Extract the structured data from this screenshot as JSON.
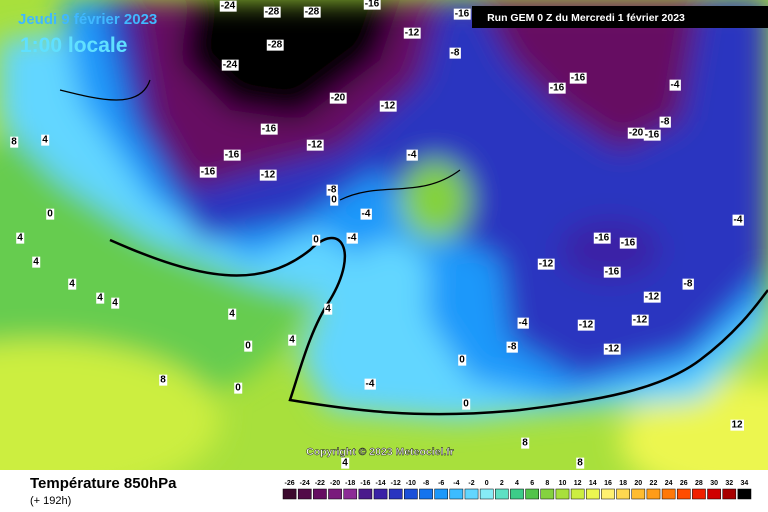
{
  "header": {
    "date": "Jeudi 9 février 2023",
    "time": "1:00 locale",
    "run": "Run GEM 0 Z du Mercredi 1 février 2023",
    "copyright": "Copyright © 2023 Meteociel.fr"
  },
  "footer": {
    "title": "Température 850hPa",
    "lead": "(+ 192h)"
  },
  "scale": {
    "ticks": [
      -26,
      -24,
      -22,
      -20,
      -18,
      -16,
      -14,
      -12,
      -10,
      -8,
      -6,
      -4,
      -2,
      0,
      2,
      4,
      6,
      8,
      10,
      12,
      14,
      16,
      18,
      20,
      22,
      24,
      26,
      28,
      30,
      32,
      34
    ],
    "colors": [
      "#3c0a2e",
      "#520a48",
      "#660e62",
      "#7a1a7c",
      "#8c2c96",
      "#4a1a8c",
      "#3a22a6",
      "#2a34c0",
      "#1c50d8",
      "#1474ee",
      "#1c98fa",
      "#3cbcff",
      "#62d6ff",
      "#86ecf6",
      "#5ee0c4",
      "#3ccc88",
      "#52c44a",
      "#84d23e",
      "#a8e03c",
      "#ccee40",
      "#ecf650",
      "#fff070",
      "#ffd850",
      "#ffbc30",
      "#ff9c18",
      "#ff7808",
      "#ff4c00",
      "#f02000",
      "#d00000",
      "#a80000",
      "#000000"
    ]
  },
  "labels": [
    -28,
    -28,
    -24,
    -16,
    -16,
    -28,
    -24,
    -12,
    -8,
    -20,
    -12,
    -16,
    -16,
    -12,
    -16,
    -12,
    -16,
    -16,
    -20,
    -16,
    -8,
    -4,
    8,
    4,
    0,
    4,
    4,
    4,
    4,
    4,
    -4,
    -8,
    0,
    -4,
    0,
    -4,
    -16,
    -16,
    -12,
    -16,
    -12,
    -8,
    -12,
    -12,
    4,
    4,
    4,
    0,
    0,
    -4,
    0,
    8,
    4,
    8,
    12,
    8,
    -4,
    -8,
    -12,
    0,
    -4
  ]
}
